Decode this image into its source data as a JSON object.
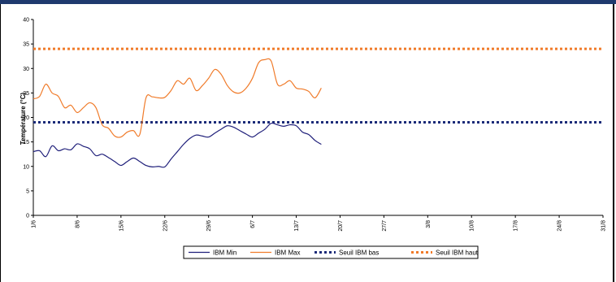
{
  "chart_data": {
    "type": "line",
    "title": "",
    "xlabel": "",
    "ylabel": "Température (°C)",
    "ylim": [
      0,
      40
    ],
    "yticks": [
      0,
      5,
      10,
      15,
      20,
      25,
      30,
      35,
      40
    ],
    "x_range_days": [
      0,
      91
    ],
    "x_ticks": [
      {
        "day": 0,
        "label": "1/6"
      },
      {
        "day": 7,
        "label": "8/6"
      },
      {
        "day": 14,
        "label": "15/6"
      },
      {
        "day": 21,
        "label": "22/6"
      },
      {
        "day": 28,
        "label": "29/6"
      },
      {
        "day": 35,
        "label": "6/7"
      },
      {
        "day": 42,
        "label": "13/7"
      },
      {
        "day": 49,
        "label": "20/7"
      },
      {
        "day": 56,
        "label": "27/7"
      },
      {
        "day": 63,
        "label": "3/8"
      },
      {
        "day": 70,
        "label": "10/8"
      },
      {
        "day": 77,
        "label": "17/8"
      },
      {
        "day": 84,
        "label": "24/8"
      },
      {
        "day": 91,
        "label": "31/8"
      }
    ],
    "grid": false,
    "legend_position": "bottom",
    "series": [
      {
        "name": "IBM Min",
        "color": "#1f1f7a",
        "style": "solid",
        "points": [
          [
            0,
            13
          ],
          [
            1,
            13.2
          ],
          [
            2,
            12
          ],
          [
            3,
            14.2
          ],
          [
            4,
            13.2
          ],
          [
            5,
            13.6
          ],
          [
            6,
            13.4
          ],
          [
            7,
            14.6
          ],
          [
            8,
            14.1
          ],
          [
            9,
            13.6
          ],
          [
            10,
            12.2
          ],
          [
            11,
            12.5
          ],
          [
            12,
            11.8
          ],
          [
            13,
            11
          ],
          [
            14,
            10.2
          ],
          [
            15,
            11
          ],
          [
            16,
            11.7
          ],
          [
            17,
            11
          ],
          [
            18,
            10.2
          ],
          [
            19,
            9.9
          ],
          [
            20,
            10
          ],
          [
            21,
            9.9
          ],
          [
            22,
            11.5
          ],
          [
            23,
            13
          ],
          [
            24,
            14.5
          ],
          [
            25,
            15.7
          ],
          [
            26,
            16.4
          ],
          [
            27,
            16.2
          ],
          [
            28,
            16
          ],
          [
            29,
            16.8
          ],
          [
            30,
            17.6
          ],
          [
            31,
            18.3
          ],
          [
            32,
            18
          ],
          [
            33,
            17.3
          ],
          [
            34,
            16.6
          ],
          [
            35,
            16
          ],
          [
            36,
            16.8
          ],
          [
            37,
            17.6
          ],
          [
            38,
            18.8
          ],
          [
            39,
            18.5
          ],
          [
            40,
            18.2
          ],
          [
            41,
            18.5
          ],
          [
            42,
            18.3
          ],
          [
            43,
            17
          ],
          [
            44,
            16.5
          ],
          [
            45,
            15.3
          ],
          [
            46,
            14.5
          ]
        ]
      },
      {
        "name": "IBM Max",
        "color": "#f07b2a",
        "style": "solid",
        "points": [
          [
            0,
            23.8
          ],
          [
            1,
            24.3
          ],
          [
            2,
            26.8
          ],
          [
            3,
            25
          ],
          [
            4,
            24.3
          ],
          [
            5,
            22
          ],
          [
            6,
            22.5
          ],
          [
            7,
            21
          ],
          [
            8,
            22
          ],
          [
            9,
            23
          ],
          [
            10,
            22
          ],
          [
            11,
            18.5
          ],
          [
            12,
            17.8
          ],
          [
            13,
            16.2
          ],
          [
            14,
            16
          ],
          [
            15,
            17
          ],
          [
            16,
            17.3
          ],
          [
            17,
            16.5
          ],
          [
            18,
            24
          ],
          [
            19,
            24.2
          ],
          [
            20,
            24
          ],
          [
            21,
            24.1
          ],
          [
            22,
            25.5
          ],
          [
            23,
            27.5
          ],
          [
            24,
            26.8
          ],
          [
            25,
            28
          ],
          [
            26,
            25.5
          ],
          [
            27,
            26.5
          ],
          [
            28,
            28
          ],
          [
            29,
            29.8
          ],
          [
            30,
            28.8
          ],
          [
            31,
            26.5
          ],
          [
            32,
            25.2
          ],
          [
            33,
            25
          ],
          [
            34,
            26
          ],
          [
            35,
            28
          ],
          [
            36,
            31.2
          ],
          [
            37,
            31.8
          ],
          [
            38,
            31.5
          ],
          [
            39,
            26.8
          ],
          [
            40,
            26.8
          ],
          [
            41,
            27.5
          ],
          [
            42,
            26
          ],
          [
            43,
            25.8
          ],
          [
            44,
            25.3
          ],
          [
            45,
            24
          ],
          [
            46,
            26
          ]
        ]
      },
      {
        "name": "Seuil IBM bas",
        "color": "#1a2a78",
        "style": "dotted",
        "value": 19
      },
      {
        "name": "Seuil IBM haut",
        "color": "#f07b2a",
        "style": "dotted",
        "value": 34
      }
    ]
  }
}
